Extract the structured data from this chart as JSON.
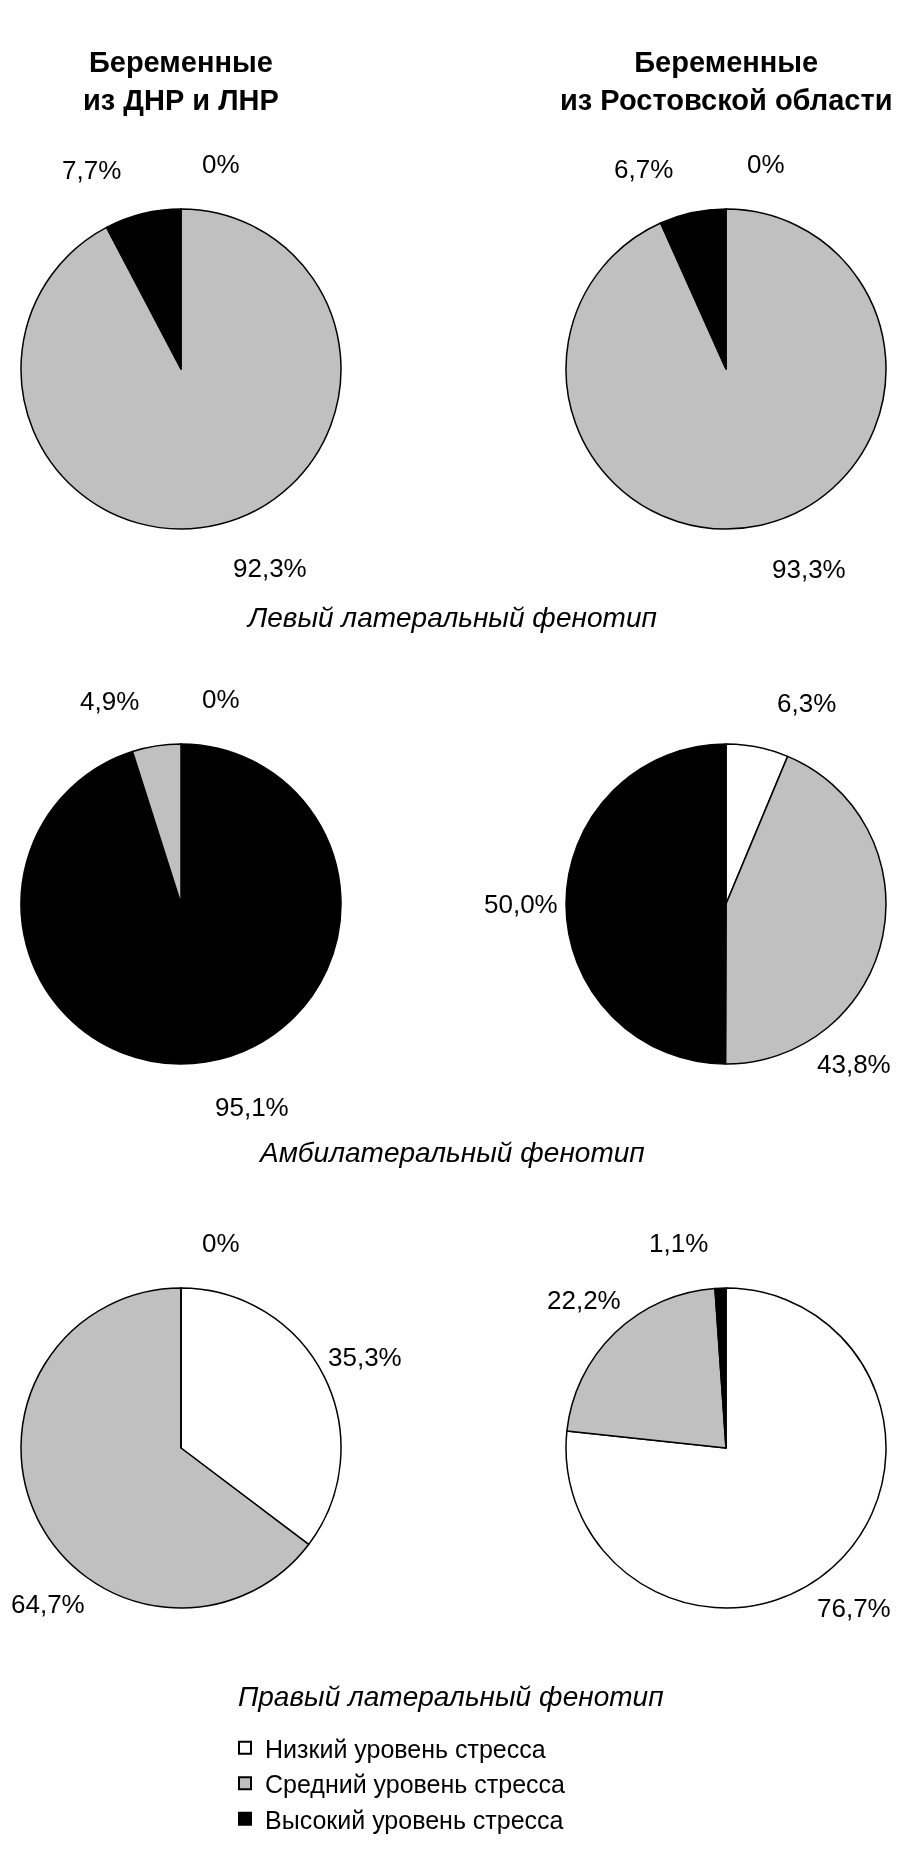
{
  "chart_data": [
    {
      "type": "pie",
      "title": "Беременные\nиз ДНР и ЛНР",
      "categories": [
        "Низкий уровень стресса",
        "Средний уровень стресса",
        "Высокий уровень стресса"
      ],
      "values": [
        0,
        92.3,
        7.7
      ],
      "colors": [
        "#ffffff",
        "#c0c0c0",
        "#000000"
      ],
      "value_labels": [
        "0%",
        "92,3%",
        "7,7%"
      ],
      "legend": "bottom",
      "annotations": [
        "Левый латеральный фенотип"
      ]
    },
    {
      "type": "pie",
      "title": "Беременные\nиз Ростовской области",
      "categories": [
        null,
        null,
        null
      ],
      "values": [
        0,
        93.3,
        6.7
      ],
      "colors": [
        "#ffffff",
        "#c0c0c0",
        "#000000"
      ],
      "value_labels": [
        "0%",
        "93,3%",
        "6,7%"
      ]
    },
    {
      "type": "pie",
      "categories": [
        null,
        null,
        null
      ],
      "values": [
        0,
        95.1,
        4.9
      ],
      "colors": [
        "#ffffff",
        "#000000",
        "#c0c0c0"
      ],
      "value_labels": [
        "0%",
        "95,1%",
        "4,9%"
      ],
      "annotations": [
        "Амбилатеральный фенотип"
      ]
    },
    {
      "type": "pie",
      "categories": [
        null,
        null,
        null
      ],
      "values": [
        6.3,
        43.8,
        50.0
      ],
      "colors": [
        "#ffffff",
        "#c0c0c0",
        "#000000"
      ],
      "value_labels": [
        "6,3%",
        "43,8%",
        "50,0%"
      ]
    },
    {
      "type": "pie",
      "categories": [
        null,
        null,
        null
      ],
      "values": [
        35.3,
        64.7,
        0
      ],
      "colors": [
        "#ffffff",
        "#c0c0c0",
        "#000000"
      ],
      "value_labels": [
        "35,3%",
        "64,7%",
        "0%"
      ],
      "annotations": [
        "Правый латеральный фенотип"
      ]
    },
    {
      "type": "pie",
      "categories": [
        null,
        null,
        null
      ],
      "values": [
        76.7,
        22.2,
        1.1
      ],
      "colors": [
        "#ffffff",
        "#c0c0c0",
        "#000000"
      ],
      "value_labels": [
        "76,7%",
        "22,2%",
        "1,1%"
      ]
    }
  ]
}
